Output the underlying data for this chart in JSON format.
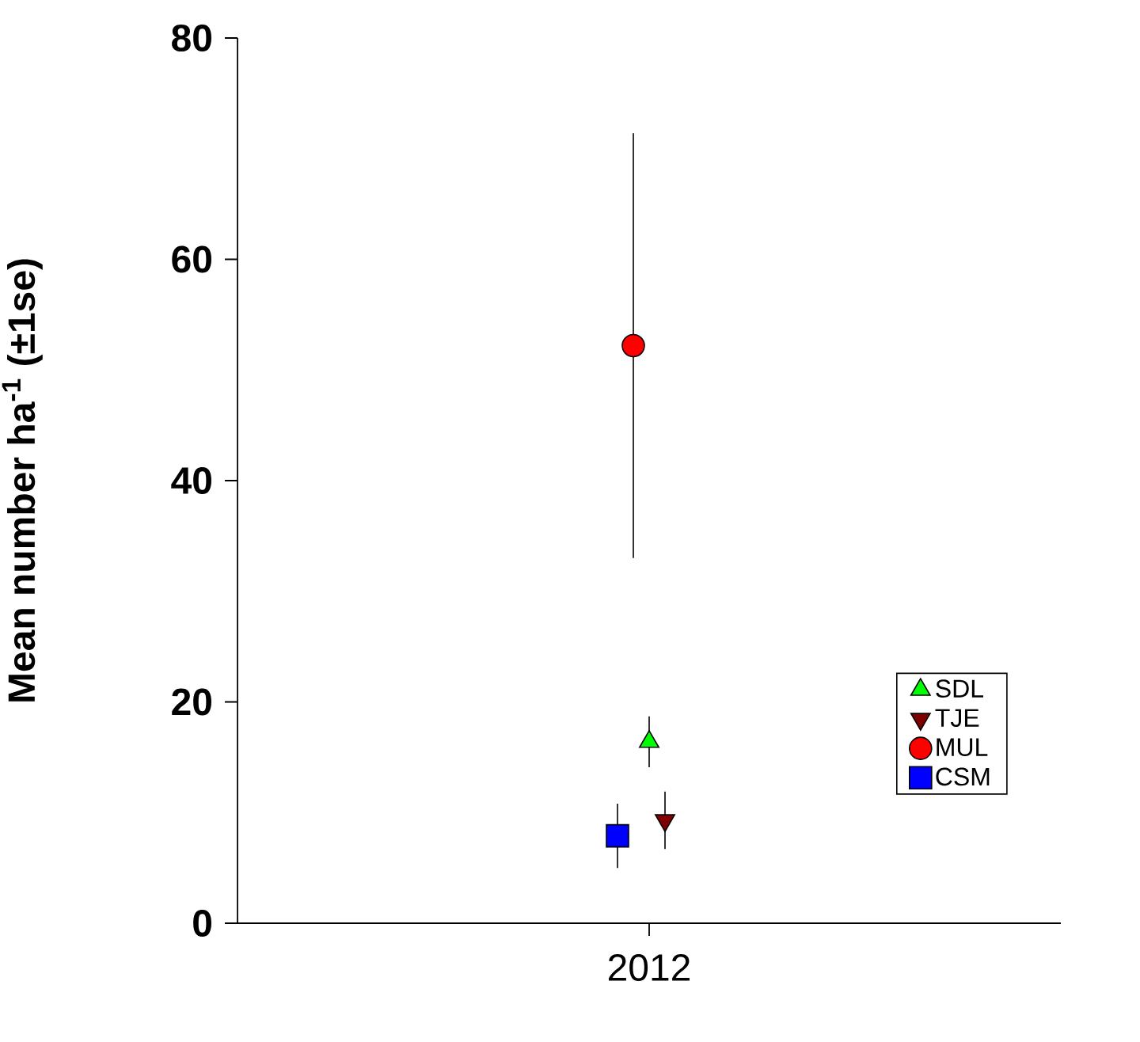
{
  "chart_data": {
    "type": "scatter",
    "ylabel": "Mean number ha$^{-1}$ (±1se)",
    "categories": [
      "2012"
    ],
    "ylim": [
      0,
      80
    ],
    "yticks": [
      0,
      20,
      40,
      60,
      80
    ],
    "legend": "bottom right",
    "grid": false,
    "series": [
      {
        "name": "SDL",
        "color": "#00ff00",
        "marker": "triangle",
        "values": [
          16.4
        ],
        "errors": [
          2.3
        ]
      },
      {
        "name": "TJE",
        "color": "#800000",
        "marker": "triangle-down",
        "values": [
          9.3
        ],
        "errors": [
          2.6
        ]
      },
      {
        "name": "MUL",
        "color": "#ff0000",
        "marker": "circle",
        "values": [
          52.2
        ],
        "errors": [
          19.2
        ]
      },
      {
        "name": "CSM",
        "color": "#0000ff",
        "marker": "square",
        "values": [
          7.9
        ],
        "errors": [
          2.9
        ]
      }
    ]
  }
}
